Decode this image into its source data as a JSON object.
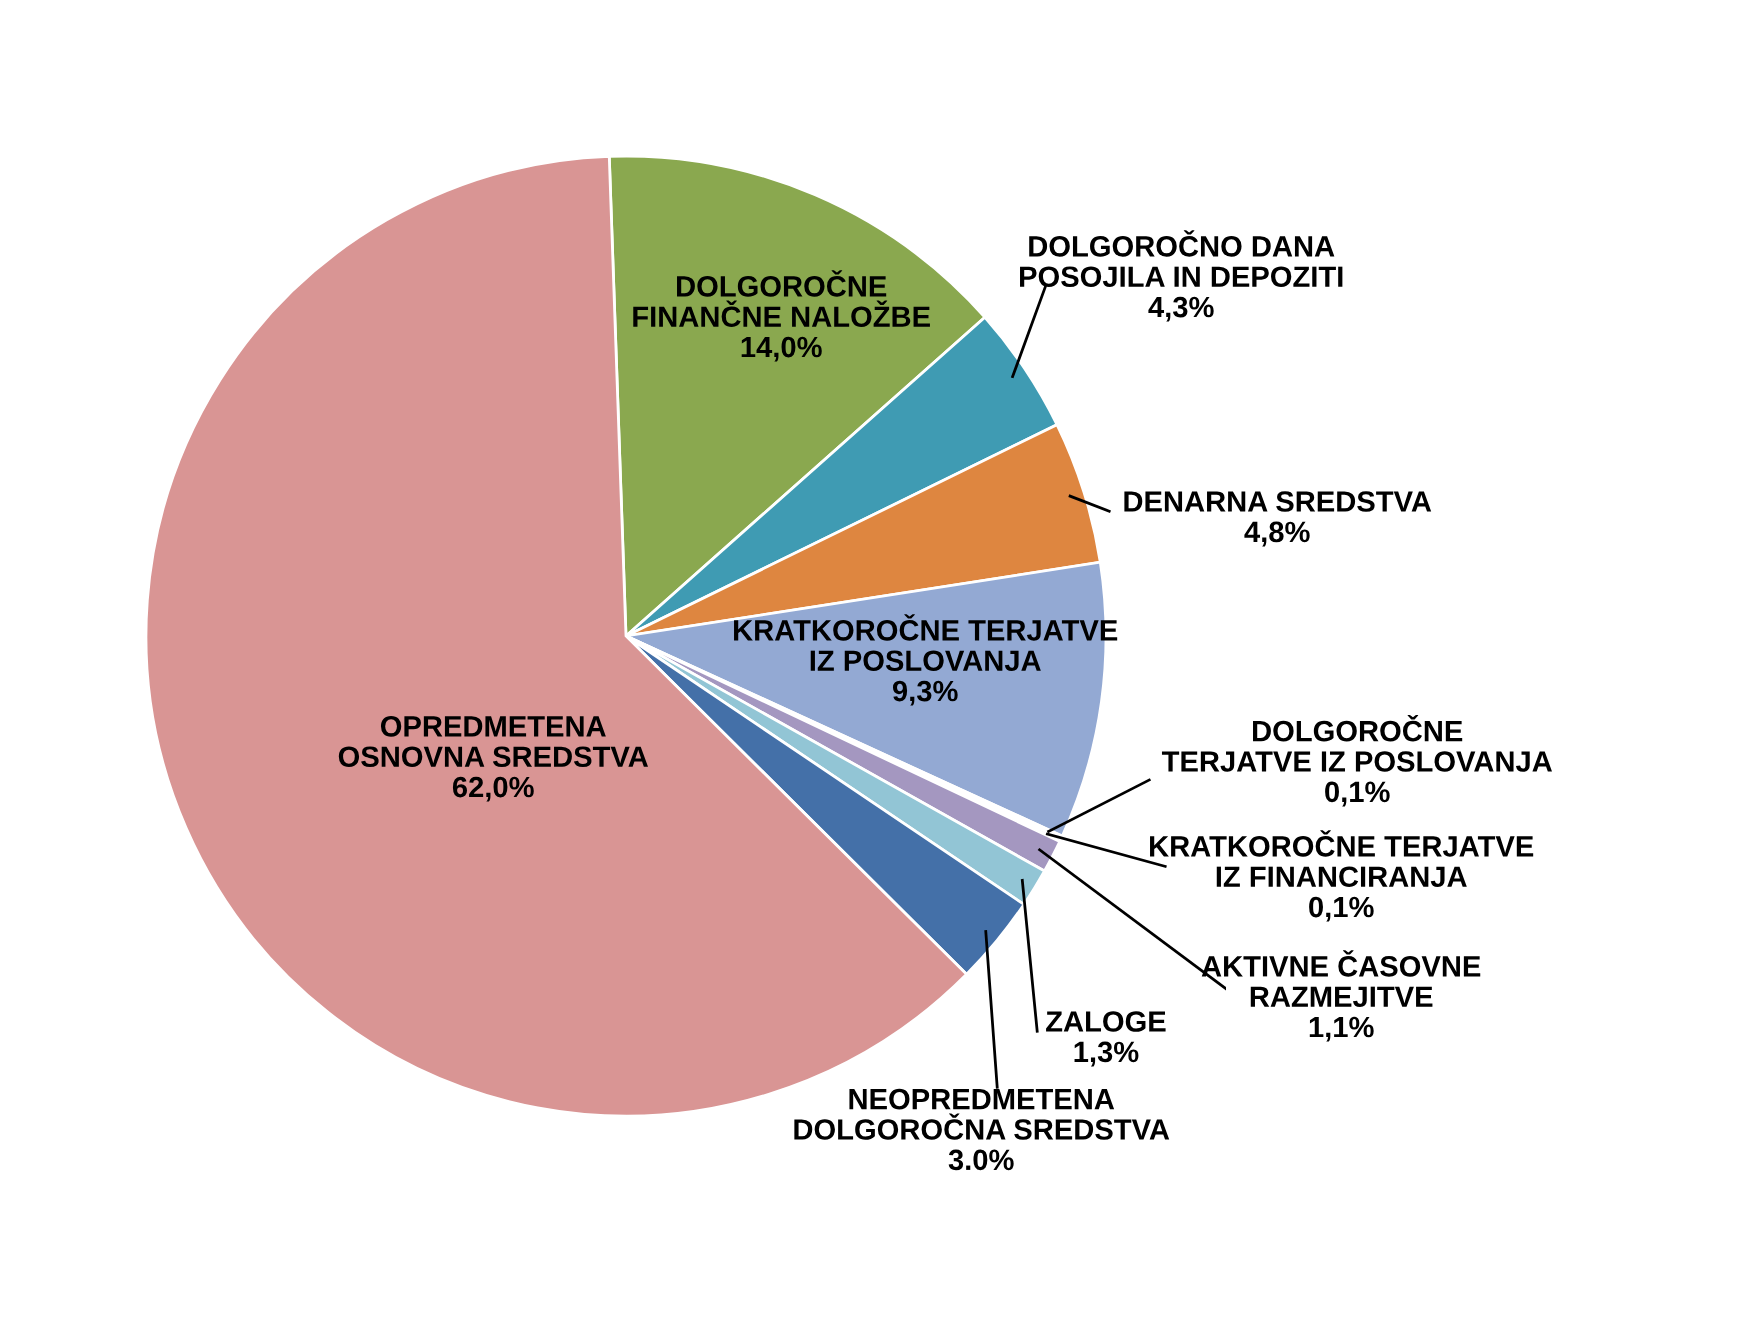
{
  "chart_data": {
    "type": "pie",
    "categories": [
      "DOLGOROČNE\nFINANČNE NALOŽBE",
      "DOLGOROČNO DANA\nPOSOJILA IN DEPOZITI",
      "DENARNA SREDSTVA",
      "KRATKOROČNE TERJATVE\nIZ POSLOVANJA",
      "DOLGOROČNE\nTERJATVE IZ POSLOVANJA",
      "KRATKOROČNE TERJATVE\nIZ FINANCIRANJA",
      "AKTIVNE ČASOVNE\nRAZMEJITVE",
      "ZALOGE",
      "NEOPREDMETENA\nDOLGOROČNA SREDSTVA",
      "OPREDMETENA\nOSNOVNA SREDSTVA"
    ],
    "values": [
      14.0,
      4.3,
      4.8,
      9.3,
      0.1,
      0.1,
      1.1,
      1.3,
      3.0,
      62.0
    ],
    "value_labels": [
      "14,0%",
      "4,3%",
      "4,8%",
      "9,3%",
      "0,1%",
      "0,1%",
      "1,1%",
      "1,3%",
      "3.0%",
      "62,0%"
    ],
    "colors": [
      "#8aa84f",
      "#3f9bb3",
      "#de8640",
      "#93a9d3",
      "#ffffff",
      "#c8c8d8",
      "#a497c0",
      "#92c5d5",
      "#4470a8",
      "#d99594"
    ]
  }
}
